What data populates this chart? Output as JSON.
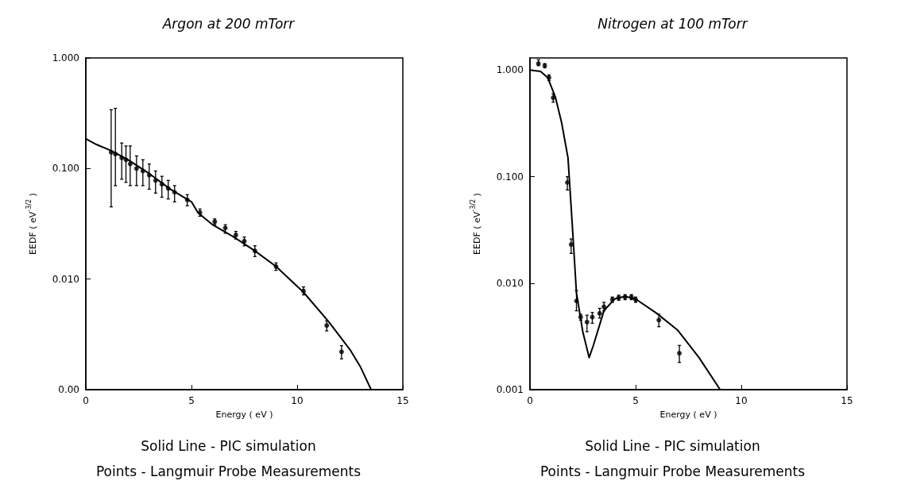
{
  "chart_data": [
    {
      "type": "line",
      "title": "Argon at 200 mTorr",
      "xlabel": "Energy ( eV )",
      "ylabel": "EEDF ( eV$^{-3/2}$ )",
      "log": "y",
      "grid": false,
      "xlim": [
        0,
        15
      ],
      "xticks": [
        0,
        5,
        10,
        15
      ],
      "ylim": [
        0.001,
        1
      ],
      "yticks": [
        {
          "value": 1,
          "label": "1.000"
        },
        {
          "value": 0.1,
          "label": "0.100"
        },
        {
          "value": 0.01,
          "label": "0.010"
        },
        {
          "value": 0.001,
          "label": "0.00"
        }
      ],
      "annotations": [
        "Solid Line - PIC simulation",
        "Points - Langmuir Probe Measurements"
      ],
      "series": [
        {
          "color": "#000000",
          "line_style": "solid",
          "x": [
            0,
            0.5,
            1.2,
            2,
            3,
            4,
            5,
            5.3,
            6,
            7,
            8,
            9,
            10.3,
            11.5,
            12.5,
            13,
            13.5
          ],
          "values": [
            0.186,
            0.165,
            0.145,
            0.12,
            0.09,
            0.065,
            0.05,
            0.04,
            0.031,
            0.024,
            0.018,
            0.013,
            0.0076,
            0.0041,
            0.0023,
            0.0016,
            0.001
          ]
        },
        {
          "type": "scatter",
          "color": "#000000",
          "marker": "circle",
          "x": [
            1.2,
            1.4,
            1.7,
            1.9,
            2.1,
            2.4,
            2.7,
            3.0,
            3.3,
            3.6,
            3.9,
            4.2,
            4.8,
            5.4,
            6.1,
            6.6,
            7.1,
            7.5,
            8.0,
            9.0,
            10.3,
            11.4,
            12.1
          ],
          "values": [
            0.14,
            0.135,
            0.125,
            0.12,
            0.11,
            0.1,
            0.095,
            0.087,
            0.078,
            0.072,
            0.066,
            0.061,
            0.052,
            0.04,
            0.033,
            0.029,
            0.025,
            0.022,
            0.018,
            0.013,
            0.0078,
            0.0038,
            0.0022
          ],
          "errors": [
            [
              0.045,
              0.34
            ],
            [
              0.07,
              0.35
            ],
            [
              0.08,
              0.17
            ],
            [
              0.075,
              0.16
            ],
            [
              0.07,
              0.16
            ],
            [
              0.07,
              0.13
            ],
            [
              0.07,
              0.12
            ],
            [
              0.065,
              0.11
            ],
            [
              0.06,
              0.095
            ],
            [
              0.055,
              0.085
            ],
            [
              0.053,
              0.078
            ],
            [
              0.05,
              0.07
            ],
            [
              0.046,
              0.058
            ],
            [
              0.037,
              0.043
            ],
            [
              0.031,
              0.035
            ],
            [
              0.026,
              0.031
            ],
            [
              0.023,
              0.027
            ],
            [
              0.02,
              0.024
            ],
            [
              0.016,
              0.02
            ],
            [
              0.012,
              0.014
            ],
            [
              0.0072,
              0.0085
            ],
            [
              0.0034,
              0.0042
            ],
            [
              0.0019,
              0.0025
            ]
          ]
        }
      ]
    },
    {
      "type": "line",
      "title": "Nitrogen at 100 mTorr",
      "xlabel": "Energy ( eV )",
      "ylabel": "EEDF ( eV$^{-3/2}$ )",
      "log": "y",
      "grid": false,
      "xlim": [
        0,
        15
      ],
      "xticks": [
        0,
        5,
        10,
        15
      ],
      "ylim": [
        0.001,
        1.3
      ],
      "yticks": [
        {
          "value": 1,
          "label": "1.000"
        },
        {
          "value": 0.1,
          "label": "0.100"
        },
        {
          "value": 0.01,
          "label": "0.010"
        },
        {
          "value": 0.001,
          "label": "0.001"
        }
      ],
      "annotations": [
        "Solid Line - PIC simulation",
        "Points - Langmuir Probe Measurements"
      ],
      "series": [
        {
          "color": "#000000",
          "line_style": "solid",
          "x": [
            0,
            0.5,
            0.84,
            1.2,
            1.5,
            1.8,
            2.0,
            2.2,
            2.5,
            2.8,
            3.0,
            3.5,
            4.0,
            4.5,
            5.0,
            6.0,
            7.0,
            8.0,
            9.0
          ],
          "values": [
            1.0,
            0.97,
            0.85,
            0.56,
            0.32,
            0.15,
            0.036,
            0.0081,
            0.0035,
            0.002,
            0.0026,
            0.0055,
            0.0071,
            0.0075,
            0.0071,
            0.0052,
            0.0036,
            0.002,
            0.001
          ]
        },
        {
          "type": "scatter",
          "color": "#000000",
          "marker": "circle",
          "x": [
            0.4,
            0.7,
            0.9,
            1.1,
            1.77,
            1.95,
            2.2,
            2.4,
            2.7,
            2.95,
            3.3,
            3.5,
            3.9,
            4.2,
            4.5,
            4.8,
            5.0,
            6.1,
            7.07
          ],
          "values": [
            1.15,
            1.1,
            0.85,
            0.55,
            0.088,
            0.023,
            0.0068,
            0.0048,
            0.0043,
            0.0048,
            0.0052,
            0.006,
            0.007,
            0.0073,
            0.0074,
            0.0074,
            0.007,
            0.0045,
            0.0022
          ],
          "errors": [
            [
              1.1,
              1.25
            ],
            [
              1.05,
              1.15
            ],
            [
              0.8,
              0.9
            ],
            [
              0.5,
              0.6
            ],
            [
              0.075,
              0.1
            ],
            [
              0.019,
              0.026
            ],
            [
              0.0055,
              0.0085
            ],
            [
              0.0045,
              0.0051
            ],
            [
              0.0035,
              0.005
            ],
            [
              0.0042,
              0.0053
            ],
            [
              0.0047,
              0.0058
            ],
            [
              0.0055,
              0.0066
            ],
            [
              0.0066,
              0.0074
            ],
            [
              0.0069,
              0.0077
            ],
            [
              0.007,
              0.0078
            ],
            [
              0.007,
              0.0078
            ],
            [
              0.0066,
              0.0074
            ],
            [
              0.0039,
              0.0051
            ],
            [
              0.0018,
              0.0026
            ]
          ]
        }
      ]
    }
  ]
}
